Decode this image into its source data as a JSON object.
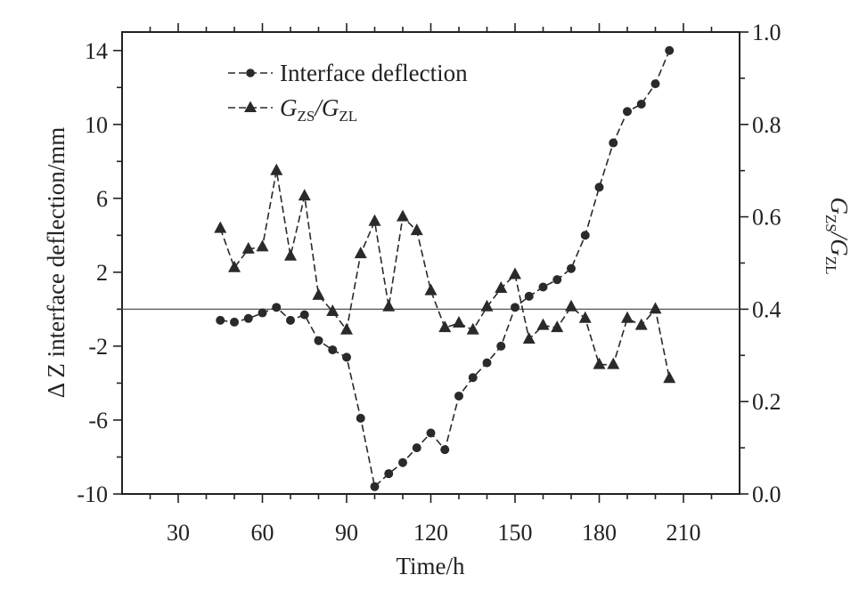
{
  "chart_data": {
    "type": "line",
    "title": "",
    "xlabel": "Time/h",
    "ylabel_left": "Δ Z interface deflection/mm",
    "ylabel_right": {
      "main": "G",
      "sub1": "ZS",
      "sep": "/G",
      "sub2": "ZL"
    },
    "xlim": [
      10,
      230
    ],
    "ylim_left": [
      -10,
      15
    ],
    "ylim_right": [
      0.0,
      1.0
    ],
    "x_ticks": [
      "30",
      "60",
      "90",
      "120",
      "150",
      "180",
      "210"
    ],
    "y_left_ticks": [
      "14",
      "10",
      "6",
      "2",
      "-2",
      "-6",
      "-10"
    ],
    "y_right_ticks": [
      "1.0",
      "0.8",
      "0.6",
      "0.4",
      "0.2",
      "0.0"
    ],
    "reference_line_right": 0.4,
    "grid": false,
    "legend_position": "top-left",
    "series": [
      {
        "name": "Interface deflection",
        "axis": "left",
        "marker": "circle",
        "color": "#2a2a2a",
        "x": [
          45,
          50,
          55,
          60,
          65,
          70,
          75,
          80,
          85,
          90,
          95,
          100,
          105,
          110,
          115,
          120,
          125,
          130,
          135,
          140,
          145,
          150,
          155,
          160,
          165,
          170,
          175,
          180,
          185,
          190,
          195,
          200,
          205
        ],
        "values": [
          -0.6,
          -0.7,
          -0.5,
          -0.2,
          0.1,
          -0.6,
          -0.3,
          -1.7,
          -2.2,
          -2.6,
          -5.9,
          -9.6,
          -8.9,
          -8.3,
          -7.5,
          -6.7,
          -7.6,
          -4.7,
          -3.7,
          -2.9,
          -2.0,
          0.1,
          0.7,
          1.2,
          1.6,
          2.2,
          4.0,
          6.6,
          9.0,
          10.7,
          11.1,
          12.2,
          14.0
        ]
      },
      {
        "name": "G_ZS/G_ZL",
        "legend_label": {
          "main": "G",
          "sub1": "ZS",
          "sep": "/G",
          "sub2": "ZL"
        },
        "axis": "right",
        "marker": "triangle",
        "color": "#2a2a2a",
        "x": [
          45,
          50,
          55,
          60,
          65,
          70,
          75,
          80,
          85,
          90,
          95,
          100,
          105,
          110,
          115,
          120,
          125,
          130,
          135,
          140,
          145,
          150,
          155,
          160,
          165,
          170,
          175,
          180,
          185,
          190,
          195,
          200,
          205
        ],
        "values": [
          0.575,
          0.49,
          0.53,
          0.535,
          0.7,
          0.515,
          0.645,
          0.43,
          0.395,
          0.355,
          0.52,
          0.59,
          0.405,
          0.6,
          0.57,
          0.44,
          0.36,
          0.37,
          0.355,
          0.405,
          0.445,
          0.475,
          0.335,
          0.365,
          0.36,
          0.405,
          0.38,
          0.28,
          0.28,
          0.38,
          0.365,
          0.4,
          0.25
        ]
      }
    ]
  }
}
